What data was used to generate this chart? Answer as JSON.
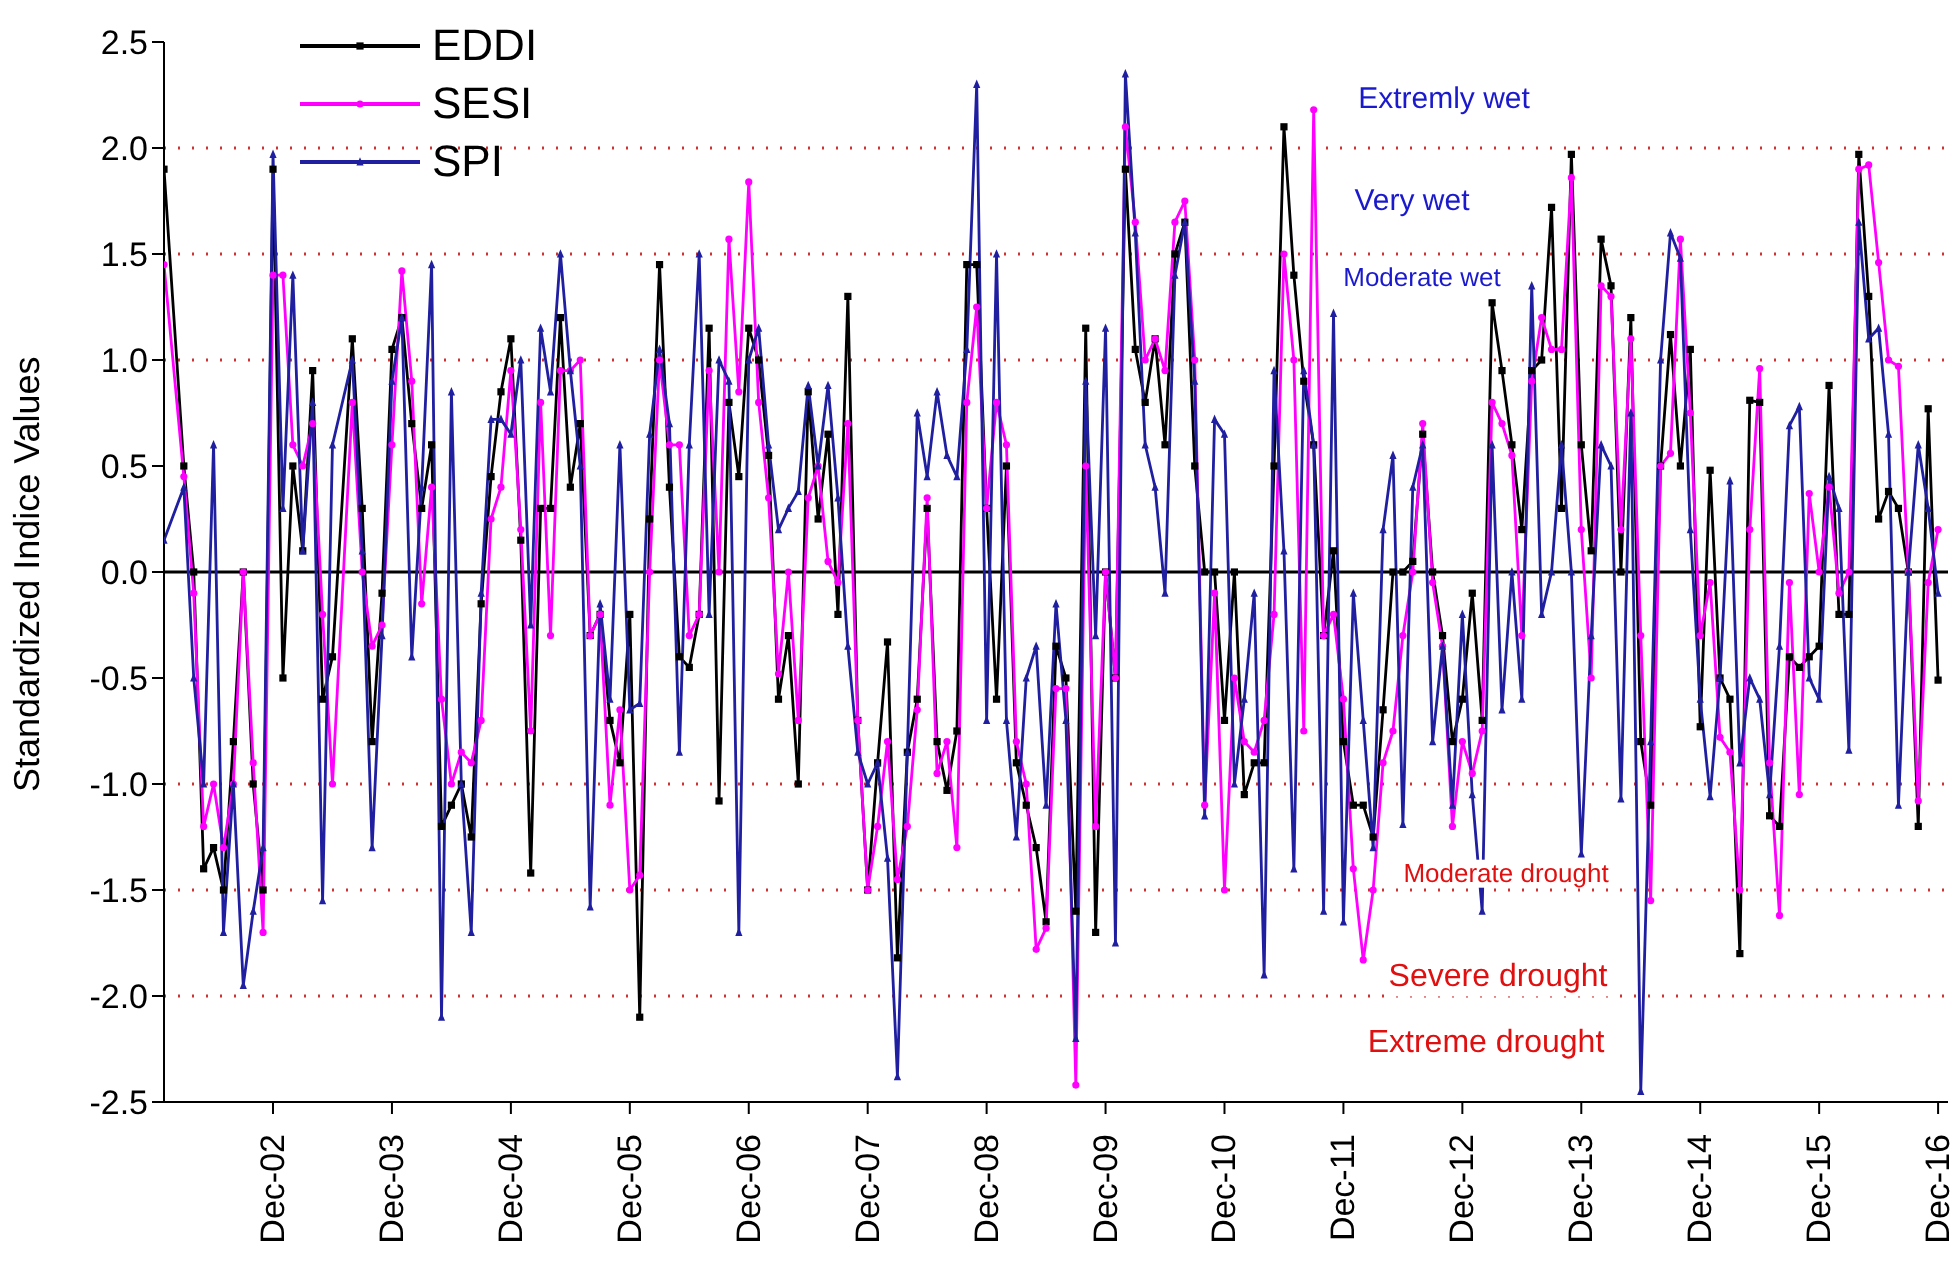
{
  "chart_data": {
    "type": "line",
    "ylabel": "Standardized Indice Values",
    "x": [
      "2002-01",
      "2002-03",
      "2002-04",
      "2002-05",
      "2002-06",
      "2002-07",
      "2002-08",
      "2002-09",
      "2002-10",
      "2002-11",
      "2002-12",
      "2003-01",
      "2003-02",
      "2003-03",
      "2003-04",
      "2003-05",
      "2003-06",
      "2003-08",
      "2003-09",
      "2003-10",
      "2003-11",
      "2003-12",
      "2004-01",
      "2004-02",
      "2004-03",
      "2004-04",
      "2004-05",
      "2004-06",
      "2004-07",
      "2004-08",
      "2004-09",
      "2004-10",
      "2004-11",
      "2004-12",
      "2005-01",
      "2005-02",
      "2005-03",
      "2005-04",
      "2005-05",
      "2005-06",
      "2005-07",
      "2005-08",
      "2005-09",
      "2005-10",
      "2005-11",
      "2005-12",
      "2006-01",
      "2006-02",
      "2006-03",
      "2006-04",
      "2006-05",
      "2006-06",
      "2006-07",
      "2006-08",
      "2006-09",
      "2006-10",
      "2006-11",
      "2006-12",
      "2007-01",
      "2007-02",
      "2007-03",
      "2007-04",
      "2007-05",
      "2007-06",
      "2007-07",
      "2007-08",
      "2007-09",
      "2007-10",
      "2007-11",
      "2007-12",
      "2008-01",
      "2008-02",
      "2008-03",
      "2008-04",
      "2008-05",
      "2008-06",
      "2008-07",
      "2008-08",
      "2008-09",
      "2008-10",
      "2008-11",
      "2008-12",
      "2009-01",
      "2009-02",
      "2009-03",
      "2009-04",
      "2009-05",
      "2009-06",
      "2009-07",
      "2009-08",
      "2009-09",
      "2009-10",
      "2009-11",
      "2009-12",
      "2010-01",
      "2010-02",
      "2010-03",
      "2010-04",
      "2010-05",
      "2010-06",
      "2010-07",
      "2010-08",
      "2010-09",
      "2010-10",
      "2010-11",
      "2010-12",
      "2011-01",
      "2011-02",
      "2011-03",
      "2011-04",
      "2011-05",
      "2011-06",
      "2011-07",
      "2011-08",
      "2011-09",
      "2011-10",
      "2011-11",
      "2011-12",
      "2012-01",
      "2012-02",
      "2012-03",
      "2012-04",
      "2012-05",
      "2012-06",
      "2012-07",
      "2012-08",
      "2012-09",
      "2012-10",
      "2012-11",
      "2012-12",
      "2013-01",
      "2013-02",
      "2013-03",
      "2013-04",
      "2013-05",
      "2013-06",
      "2013-07",
      "2013-08",
      "2013-09",
      "2013-10",
      "2013-11",
      "2013-12",
      "2014-01",
      "2014-02",
      "2014-03",
      "2014-04",
      "2014-05",
      "2014-06",
      "2014-07",
      "2014-08",
      "2014-09",
      "2014-10",
      "2014-11",
      "2014-12",
      "2015-01",
      "2015-02",
      "2015-03",
      "2015-04",
      "2015-05",
      "2015-06",
      "2015-07",
      "2015-08",
      "2015-09",
      "2015-10",
      "2015-11",
      "2015-12",
      "2016-01",
      "2016-02",
      "2016-03",
      "2016-04",
      "2016-05",
      "2016-06",
      "2016-07",
      "2016-08",
      "2016-09",
      "2016-10",
      "2016-11",
      "2016-12"
    ],
    "series": [
      {
        "name": "EDDI",
        "color": "#000000",
        "marker": "square",
        "values": [
          1.9,
          0.5,
          0.0,
          -1.4,
          -1.3,
          -1.5,
          -0.8,
          0.0,
          -1.0,
          -1.5,
          1.9,
          -0.5,
          0.5,
          0.1,
          0.95,
          -0.6,
          -0.4,
          1.1,
          0.3,
          -0.8,
          -0.1,
          1.05,
          1.2,
          0.7,
          0.3,
          0.6,
          -1.2,
          -1.1,
          -1.0,
          -1.25,
          -0.15,
          0.45,
          0.85,
          1.1,
          0.15,
          -1.42,
          0.3,
          0.3,
          1.2,
          0.4,
          0.7,
          -0.3,
          -0.2,
          -0.7,
          -0.9,
          -0.2,
          -2.1,
          0.25,
          1.45,
          0.4,
          -0.4,
          -0.45,
          -0.2,
          1.15,
          -1.08,
          0.8,
          0.45,
          1.15,
          1.0,
          0.55,
          -0.6,
          -0.3,
          -1.0,
          0.85,
          0.25,
          0.65,
          -0.2,
          1.3,
          -0.7,
          -1.5,
          -0.9,
          -0.33,
          -1.82,
          -0.85,
          -0.6,
          0.3,
          -0.8,
          -1.03,
          -0.75,
          1.45,
          1.45,
          0.3,
          -0.6,
          0.5,
          -0.9,
          -1.1,
          -1.3,
          -1.65,
          -0.35,
          -0.5,
          -1.6,
          1.15,
          -1.7,
          0.0,
          -0.5,
          1.9,
          1.05,
          0.8,
          1.1,
          0.6,
          1.5,
          1.65,
          0.5,
          0.0,
          0.0,
          -0.7,
          0.0,
          -1.05,
          -0.9,
          -0.9,
          0.5,
          2.1,
          1.4,
          0.9,
          0.6,
          -0.3,
          0.1,
          -0.8,
          -1.1,
          -1.1,
          -1.25,
          -0.65,
          0.0,
          0.0,
          0.05,
          0.65,
          0.0,
          -0.3,
          -0.8,
          -0.6,
          -0.1,
          -0.7,
          1.27,
          0.95,
          0.6,
          0.2,
          0.95,
          1.0,
          1.72,
          0.3,
          1.97,
          0.6,
          0.1,
          1.57,
          1.35,
          0.0,
          1.2,
          -0.8,
          -1.1,
          0.5,
          1.12,
          0.5,
          1.05,
          -0.73,
          0.48,
          -0.5,
          -0.6,
          -1.8,
          0.81,
          0.8,
          -1.15,
          -1.2,
          -0.4,
          -0.45,
          -0.4,
          -0.35,
          0.88,
          -0.2,
          -0.2,
          1.97,
          1.3,
          0.25,
          0.38,
          0.3,
          0.0,
          -1.2,
          0.77,
          -0.51
        ]
      },
      {
        "name": "SESI",
        "color": "#ff00ff",
        "marker": "circle",
        "values": [
          1.45,
          0.45,
          -0.1,
          -1.2,
          -1.0,
          -1.3,
          -1.0,
          0.0,
          -0.9,
          -1.7,
          1.4,
          1.4,
          0.6,
          0.5,
          0.7,
          -0.2,
          -1.0,
          0.8,
          0.0,
          -0.35,
          -0.25,
          0.6,
          1.42,
          0.9,
          -0.15,
          0.4,
          -0.6,
          -1.0,
          -0.85,
          -0.9,
          -0.7,
          0.25,
          0.4,
          0.95,
          0.2,
          -0.75,
          0.8,
          -0.3,
          0.95,
          0.95,
          1.0,
          -0.3,
          -0.2,
          -1.1,
          -0.65,
          -1.5,
          -1.43,
          0.0,
          1.0,
          0.6,
          0.6,
          -0.3,
          -0.2,
          0.95,
          0.0,
          1.57,
          0.85,
          1.84,
          0.8,
          0.35,
          -0.48,
          0.0,
          -0.7,
          0.35,
          0.5,
          0.05,
          -0.05,
          0.7,
          -0.7,
          -1.5,
          -1.2,
          -0.8,
          -1.45,
          -1.2,
          -0.65,
          0.35,
          -0.95,
          -0.8,
          -1.3,
          0.8,
          1.25,
          0.3,
          0.8,
          0.6,
          -0.8,
          -1.0,
          -1.78,
          -1.68,
          -0.55,
          -0.55,
          -2.42,
          0.5,
          -1.2,
          0.0,
          -0.5,
          2.1,
          1.65,
          1.0,
          1.1,
          0.95,
          1.65,
          1.75,
          1.0,
          -1.1,
          -0.1,
          -1.5,
          -0.5,
          -0.8,
          -0.85,
          -0.7,
          -0.2,
          1.5,
          1.0,
          -0.75,
          2.18,
          -0.3,
          -0.2,
          -0.6,
          -1.4,
          -1.83,
          -1.5,
          -0.9,
          -0.75,
          -0.3,
          0.0,
          0.7,
          -0.05,
          -0.35,
          -1.2,
          -0.8,
          -0.95,
          -0.75,
          0.8,
          0.7,
          0.55,
          -0.3,
          0.9,
          1.2,
          1.05,
          1.05,
          1.86,
          0.2,
          -0.5,
          1.35,
          1.3,
          0.2,
          1.1,
          -0.3,
          -1.55,
          0.5,
          0.56,
          1.57,
          0.75,
          -0.3,
          -0.05,
          -0.78,
          -0.85,
          -1.5,
          0.2,
          0.96,
          -0.9,
          -1.62,
          -0.05,
          -1.05,
          0.37,
          0.0,
          0.4,
          -0.1,
          0.0,
          1.9,
          1.92,
          1.46,
          1.0,
          0.97,
          0.0,
          -1.08,
          -0.05,
          0.2
        ]
      },
      {
        "name": "SPI",
        "color": "#1f1fa0",
        "marker": "triangle",
        "values": [
          0.15,
          0.4,
          -0.5,
          -1.0,
          0.6,
          -1.7,
          -1.0,
          -1.95,
          -1.6,
          -1.3,
          1.97,
          0.3,
          1.4,
          0.1,
          0.8,
          -1.55,
          0.6,
          1.0,
          0.1,
          -1.3,
          -0.3,
          0.9,
          1.2,
          -0.4,
          0.4,
          1.45,
          -2.1,
          0.85,
          -1.0,
          -1.7,
          -0.1,
          0.72,
          0.72,
          0.65,
          1.0,
          -0.25,
          1.15,
          0.85,
          1.5,
          0.95,
          0.5,
          -1.58,
          -0.15,
          -0.6,
          0.6,
          -0.65,
          -0.62,
          0.65,
          1.05,
          0.7,
          -0.85,
          0.6,
          1.5,
          -0.2,
          1.0,
          0.9,
          -1.7,
          1.0,
          1.15,
          0.6,
          0.2,
          0.3,
          0.38,
          0.88,
          0.5,
          0.88,
          0.35,
          -0.35,
          -0.85,
          -1.0,
          -0.9,
          -1.35,
          -2.38,
          -0.85,
          0.75,
          0.45,
          0.85,
          0.55,
          0.45,
          1.05,
          2.3,
          -0.7,
          1.5,
          -0.7,
          -1.25,
          -0.5,
          -0.35,
          -1.1,
          -0.15,
          -0.7,
          -2.2,
          0.9,
          -0.3,
          1.15,
          -1.75,
          2.35,
          1.6,
          0.6,
          0.4,
          -0.1,
          1.4,
          1.65,
          0.9,
          -1.15,
          0.72,
          0.65,
          -1.0,
          -0.6,
          -0.1,
          -1.9,
          0.95,
          0.1,
          -1.4,
          0.95,
          0.6,
          -1.6,
          1.22,
          -1.65,
          -0.1,
          -0.7,
          -1.3,
          0.2,
          0.55,
          -1.19,
          0.4,
          0.6,
          -0.8,
          -0.35,
          -1.1,
          -0.2,
          -1.05,
          -1.6,
          0.6,
          -0.65,
          0.0,
          -0.6,
          1.35,
          -0.2,
          0.0,
          0.6,
          0.0,
          -1.33,
          -0.3,
          0.6,
          0.5,
          -1.07,
          0.75,
          -2.45,
          -0.8,
          1.0,
          1.6,
          1.48,
          0.2,
          -0.6,
          -1.06,
          -0.5,
          0.43,
          -0.9,
          -0.5,
          -0.6,
          -1.05,
          -0.35,
          0.69,
          0.78,
          -0.5,
          -0.6,
          0.45,
          0.3,
          -0.84,
          1.65,
          1.1,
          1.15,
          0.65,
          -1.1,
          0.0,
          0.6,
          0.3,
          -0.1
        ]
      }
    ],
    "xlim": [
      "2002-01",
      "2017-01"
    ],
    "xticks": [
      {
        "value": "2002-12",
        "label": "Dec-02"
      },
      {
        "value": "2003-12",
        "label": "Dec-03"
      },
      {
        "value": "2004-12",
        "label": "Dec-04"
      },
      {
        "value": "2005-12",
        "label": "Dec-05"
      },
      {
        "value": "2006-12",
        "label": "Dec-06"
      },
      {
        "value": "2007-12",
        "label": "Dec-07"
      },
      {
        "value": "2008-12",
        "label": "Dec-08"
      },
      {
        "value": "2009-12",
        "label": "Dec-09"
      },
      {
        "value": "2010-12",
        "label": "Dec-10"
      },
      {
        "value": "2011-12",
        "label": "Dec-11"
      },
      {
        "value": "2012-12",
        "label": "Dec-12"
      },
      {
        "value": "2013-12",
        "label": "Dec-13"
      },
      {
        "value": "2014-12",
        "label": "Dec-14"
      },
      {
        "value": "2015-12",
        "label": "Dec-15"
      },
      {
        "value": "2016-12",
        "label": "Dec-16"
      }
    ],
    "ylim": [
      -2.5,
      2.5
    ],
    "yticks": [
      -2.5,
      {
        "value": -2,
        "label": "-2.0"
      },
      -1.5,
      {
        "value": -1,
        "label": "-1.0"
      },
      -0.5,
      {
        "value": 0,
        "label": "0.0"
      },
      0.5,
      {
        "value": 1,
        "label": "1.0"
      },
      1.5,
      {
        "value": 2,
        "label": "2.0"
      },
      2.5
    ],
    "ref_lines": [
      {
        "axis": "y",
        "value": 2,
        "color": "#cc3333",
        "line_style": "dotted"
      },
      {
        "axis": "y",
        "value": 1.5,
        "color": "#cc3333",
        "line_style": "dotted"
      },
      {
        "axis": "y",
        "value": 1,
        "color": "#cc3333",
        "line_style": "dotted"
      },
      {
        "axis": "y",
        "value": 0,
        "color": "#000000",
        "line_style": "solid"
      },
      {
        "axis": "y",
        "value": -1,
        "color": "#cc3333",
        "line_style": "dotted"
      },
      {
        "axis": "y",
        "value": -1.5,
        "color": "#cc3333",
        "line_style": "dotted"
      },
      {
        "axis": "y",
        "value": -2,
        "color": "#cc3333",
        "line_style": "dotted"
      }
    ],
    "annotations": [
      "Extremly wet",
      "Very wet",
      "Moderate wet",
      "Moderate drought",
      "Severe drought",
      "Extreme drought"
    ],
    "legend": "top left",
    "grid": false,
    "line_style": "solid"
  }
}
